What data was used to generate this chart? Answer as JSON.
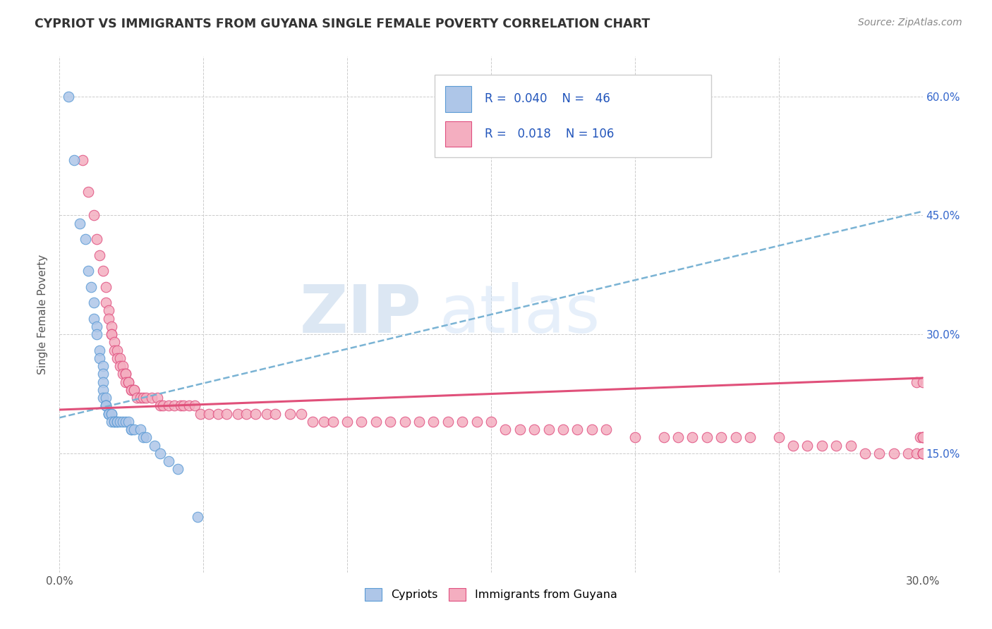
{
  "title": "CYPRIOT VS IMMIGRANTS FROM GUYANA SINGLE FEMALE POVERTY CORRELATION CHART",
  "source": "Source: ZipAtlas.com",
  "ylabel": "Single Female Poverty",
  "xlim": [
    0.0,
    0.3
  ],
  "ylim": [
    0.0,
    0.65
  ],
  "ytick_positions": [
    0.15,
    0.3,
    0.45,
    0.6
  ],
  "ytick_labels": [
    "15.0%",
    "30.0%",
    "45.0%",
    "60.0%"
  ],
  "watermark_zip": "ZIP",
  "watermark_atlas": "atlas",
  "cypriot_color": "#aec6e8",
  "guyana_color": "#f4aec0",
  "cypriot_edge": "#5b9bd5",
  "guyana_edge": "#e05080",
  "trend_blue_color": "#7ab3d4",
  "trend_pink_color": "#e0507a",
  "R_cypriot": 0.04,
  "N_cypriot": 46,
  "R_guyana": 0.018,
  "N_guyana": 106,
  "blue_trend": [
    0.195,
    0.455
  ],
  "pink_trend": [
    0.205,
    0.245
  ],
  "cypriot_x": [
    0.003,
    0.005,
    0.007,
    0.009,
    0.01,
    0.011,
    0.012,
    0.012,
    0.013,
    0.013,
    0.014,
    0.014,
    0.015,
    0.015,
    0.015,
    0.015,
    0.015,
    0.016,
    0.016,
    0.016,
    0.016,
    0.017,
    0.017,
    0.017,
    0.018,
    0.018,
    0.018,
    0.019,
    0.019,
    0.02,
    0.02,
    0.021,
    0.022,
    0.023,
    0.024,
    0.025,
    0.025,
    0.026,
    0.028,
    0.029,
    0.03,
    0.033,
    0.035,
    0.038,
    0.041,
    0.048
  ],
  "cypriot_y": [
    0.6,
    0.52,
    0.44,
    0.42,
    0.38,
    0.36,
    0.34,
    0.32,
    0.31,
    0.3,
    0.28,
    0.27,
    0.26,
    0.25,
    0.24,
    0.23,
    0.22,
    0.22,
    0.21,
    0.21,
    0.21,
    0.2,
    0.2,
    0.2,
    0.2,
    0.2,
    0.19,
    0.19,
    0.19,
    0.19,
    0.19,
    0.19,
    0.19,
    0.19,
    0.19,
    0.18,
    0.18,
    0.18,
    0.18,
    0.17,
    0.17,
    0.16,
    0.15,
    0.14,
    0.13,
    0.07
  ],
  "guyana_x": [
    0.008,
    0.01,
    0.012,
    0.013,
    0.014,
    0.015,
    0.016,
    0.016,
    0.017,
    0.017,
    0.018,
    0.018,
    0.018,
    0.019,
    0.019,
    0.02,
    0.02,
    0.021,
    0.021,
    0.022,
    0.022,
    0.023,
    0.023,
    0.023,
    0.024,
    0.024,
    0.025,
    0.025,
    0.026,
    0.026,
    0.027,
    0.028,
    0.029,
    0.03,
    0.032,
    0.034,
    0.035,
    0.036,
    0.038,
    0.04,
    0.042,
    0.043,
    0.045,
    0.047,
    0.049,
    0.052,
    0.055,
    0.058,
    0.062,
    0.065,
    0.068,
    0.072,
    0.075,
    0.08,
    0.084,
    0.088,
    0.092,
    0.095,
    0.1,
    0.105,
    0.11,
    0.115,
    0.12,
    0.125,
    0.13,
    0.135,
    0.14,
    0.145,
    0.15,
    0.155,
    0.16,
    0.165,
    0.17,
    0.175,
    0.18,
    0.185,
    0.19,
    0.2,
    0.21,
    0.215,
    0.22,
    0.225,
    0.23,
    0.235,
    0.24,
    0.25,
    0.255,
    0.26,
    0.265,
    0.27,
    0.275,
    0.28,
    0.285,
    0.29,
    0.295,
    0.298,
    0.298,
    0.299,
    0.3,
    0.3,
    0.3,
    0.3,
    0.3,
    0.3,
    0.3,
    0.3
  ],
  "guyana_y": [
    0.52,
    0.48,
    0.45,
    0.42,
    0.4,
    0.38,
    0.36,
    0.34,
    0.33,
    0.32,
    0.31,
    0.3,
    0.3,
    0.29,
    0.28,
    0.28,
    0.27,
    0.27,
    0.26,
    0.26,
    0.25,
    0.25,
    0.25,
    0.24,
    0.24,
    0.24,
    0.23,
    0.23,
    0.23,
    0.23,
    0.22,
    0.22,
    0.22,
    0.22,
    0.22,
    0.22,
    0.21,
    0.21,
    0.21,
    0.21,
    0.21,
    0.21,
    0.21,
    0.21,
    0.2,
    0.2,
    0.2,
    0.2,
    0.2,
    0.2,
    0.2,
    0.2,
    0.2,
    0.2,
    0.2,
    0.19,
    0.19,
    0.19,
    0.19,
    0.19,
    0.19,
    0.19,
    0.19,
    0.19,
    0.19,
    0.19,
    0.19,
    0.19,
    0.19,
    0.18,
    0.18,
    0.18,
    0.18,
    0.18,
    0.18,
    0.18,
    0.18,
    0.17,
    0.17,
    0.17,
    0.17,
    0.17,
    0.17,
    0.17,
    0.17,
    0.17,
    0.16,
    0.16,
    0.16,
    0.16,
    0.16,
    0.15,
    0.15,
    0.15,
    0.15,
    0.15,
    0.24,
    0.17,
    0.17,
    0.15,
    0.17,
    0.24,
    0.17,
    0.15,
    0.15,
    0.15
  ]
}
